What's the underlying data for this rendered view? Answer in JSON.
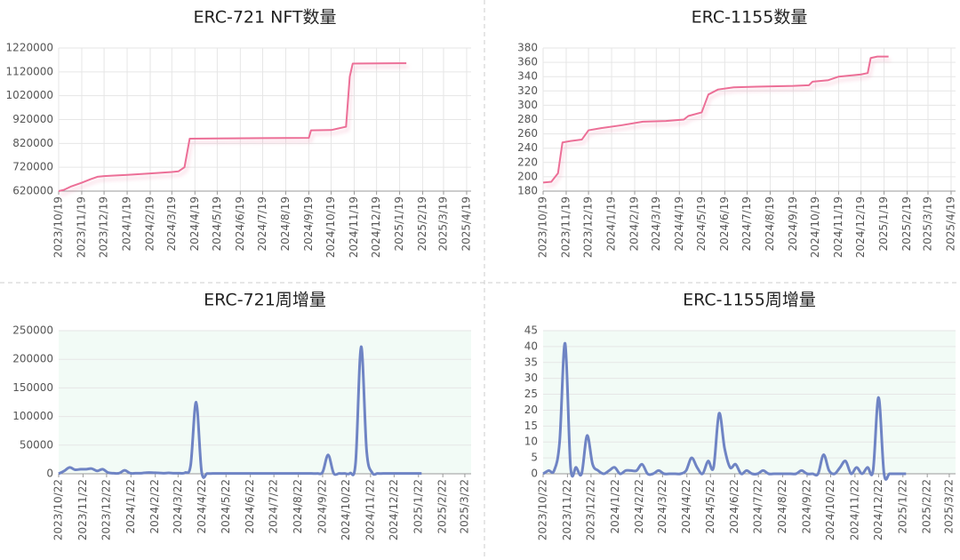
{
  "chart_data": [
    {
      "type": "line",
      "title": "ERC-721 NFT数量",
      "x": [
        "2023/10/19",
        "2023/10/26",
        "2023/11/5",
        "2023/11/19",
        "2023/12/1",
        "2023/12/10",
        "2023/12/19",
        "2024/1/19",
        "2024/2/19",
        "2024/3/19",
        "2024/3/28",
        "2024/4/5",
        "2024/4/12",
        "2024/5/19",
        "2024/7/19",
        "2024/9/19",
        "2024/9/22",
        "2024/10/19",
        "2024/11/8",
        "2024/11/13",
        "2024/11/17",
        "2025/1/19",
        "2025/1/28"
      ],
      "series": [
        {
          "name": "ERC-721",
          "color": "#ec6f97",
          "values": [
            620000,
            625000,
            640000,
            655000,
            670000,
            680000,
            683000,
            688000,
            694000,
            700000,
            703000,
            720000,
            840000,
            841000,
            842000,
            843000,
            875000,
            876000,
            890000,
            1100000,
            1155000,
            1156000,
            1156000
          ]
        }
      ],
      "xlim": [
        "2023/10/19",
        "2025/4/25"
      ],
      "xticks": [
        "2023/10/19",
        "2023/11/19",
        "2023/12/19",
        "2024/1/19",
        "2024/2/19",
        "2024/3/19",
        "2024/4/19",
        "2024/5/19",
        "2024/6/19",
        "2024/7/19",
        "2024/8/19",
        "2024/9/19",
        "2024/10/19",
        "2024/11/19",
        "2024/12/19",
        "2025/1/19",
        "2025/2/19",
        "2025/3/19",
        "2025/4/19"
      ],
      "ylim": [
        620000,
        1220000
      ],
      "yticks": [
        620000,
        720000,
        820000,
        920000,
        1020000,
        1120000,
        1220000
      ],
      "grid": "both"
    },
    {
      "type": "line",
      "title": "ERC-1155数量",
      "x": [
        "2023/10/19",
        "2023/10/30",
        "2023/11/8",
        "2023/11/14",
        "2023/11/25",
        "2023/12/10",
        "2023/12/19",
        "2024/1/5",
        "2024/2/1",
        "2024/3/1",
        "2024/4/1",
        "2024/4/25",
        "2024/5/1",
        "2024/5/19",
        "2024/5/28",
        "2024/6/10",
        "2024/7/1",
        "2024/8/1",
        "2024/9/19",
        "2024/10/10",
        "2024/10/15",
        "2024/11/5",
        "2024/11/19",
        "2024/12/19",
        "2024/12/28",
        "2025/1/1",
        "2025/1/10",
        "2025/1/25"
      ],
      "series": [
        {
          "name": "ERC-1155",
          "color": "#ec6f97",
          "values": [
            192,
            193,
            205,
            248,
            250,
            252,
            265,
            268,
            272,
            277,
            278,
            280,
            285,
            290,
            315,
            322,
            325,
            326,
            327,
            328,
            333,
            335,
            340,
            343,
            345,
            366,
            368,
            368
          ]
        }
      ],
      "xlim": [
        "2023/10/19",
        "2025/4/25"
      ],
      "xticks": [
        "2023/10/19",
        "2023/11/19",
        "2023/12/19",
        "2024/1/19",
        "2024/2/19",
        "2024/3/19",
        "2024/4/19",
        "2024/5/19",
        "2024/6/19",
        "2024/7/19",
        "2024/8/19",
        "2024/9/19",
        "2024/10/19",
        "2024/11/19",
        "2024/12/19",
        "2025/1/19",
        "2025/2/19",
        "2025/3/19",
        "2025/4/19"
      ],
      "ylim": [
        180,
        380
      ],
      "yticks": [
        180,
        200,
        220,
        240,
        260,
        280,
        300,
        320,
        340,
        360,
        380
      ],
      "grid": "both"
    },
    {
      "type": "line",
      "title": "ERC-721周增量",
      "smooth": true,
      "plot_background": "#f2fbf6",
      "x": [
        "2023/10/22",
        "2023/10/29",
        "2023/11/5",
        "2023/11/12",
        "2023/11/19",
        "2023/11/26",
        "2023/12/3",
        "2023/12/10",
        "2023/12/17",
        "2023/12/24",
        "2023/12/31",
        "2024/1/7",
        "2024/1/14",
        "2024/1/21",
        "2024/1/28",
        "2024/2/4",
        "2024/2/11",
        "2024/2/18",
        "2024/2/25",
        "2024/3/3",
        "2024/3/10",
        "2024/3/17",
        "2024/3/24",
        "2024/3/31",
        "2024/4/7",
        "2024/4/14",
        "2024/4/21",
        "2024/4/28",
        "2024/5/5",
        "2024/5/12",
        "2024/5/19",
        "2024/5/26",
        "2024/6/2",
        "2024/6/9",
        "2024/6/16",
        "2024/6/23",
        "2024/6/30",
        "2024/7/7",
        "2024/7/14",
        "2024/7/21",
        "2024/7/28",
        "2024/8/4",
        "2024/8/11",
        "2024/8/18",
        "2024/8/25",
        "2024/9/1",
        "2024/9/8",
        "2024/9/15",
        "2024/9/22",
        "2024/9/29",
        "2024/10/6",
        "2024/10/13",
        "2024/10/20",
        "2024/10/27",
        "2024/11/3",
        "2024/11/10",
        "2024/11/17",
        "2024/11/24",
        "2024/12/1",
        "2024/12/8",
        "2024/12/15",
        "2024/12/22",
        "2024/12/29",
        "2025/1/5",
        "2025/1/12",
        "2025/1/19",
        "2025/1/26"
      ],
      "series": [
        {
          "name": "ERC-721周增量",
          "color": "#6f84c4",
          "values": [
            0,
            5000,
            11000,
            7000,
            8000,
            8000,
            9000,
            5000,
            8000,
            2000,
            1000,
            1000,
            6000,
            1000,
            1000,
            1000,
            2000,
            2000,
            1500,
            1000,
            1500,
            1000,
            1000,
            2000,
            15000,
            125000,
            3000,
            500,
            500,
            500,
            500,
            500,
            500,
            500,
            500,
            500,
            500,
            500,
            500,
            500,
            500,
            500,
            500,
            500,
            500,
            500,
            500,
            500,
            3000,
            33000,
            1000,
            500,
            500,
            1000,
            20000,
            222000,
            40000,
            2000,
            500,
            500,
            500,
            500,
            500,
            500,
            500,
            500,
            500
          ]
        }
      ],
      "xlim": [
        "2023/10/22",
        "2025/3/30"
      ],
      "xticks": [
        "2023/10/22",
        "2023/11/22",
        "2023/12/22",
        "2024/1/22",
        "2024/2/22",
        "2024/3/22",
        "2024/4/22",
        "2024/5/22",
        "2024/6/22",
        "2024/7/22",
        "2024/8/22",
        "2024/9/22",
        "2024/10/22",
        "2024/11/22",
        "2024/12/22",
        "2025/1/22",
        "2025/2/22",
        "2025/3/22"
      ],
      "ylim": [
        0,
        250000
      ],
      "yticks": [
        0,
        50000,
        100000,
        150000,
        200000,
        250000
      ],
      "grid": "y"
    },
    {
      "type": "line",
      "title": "ERC-1155周增量",
      "smooth": true,
      "plot_background": "#f2fbf6",
      "x": [
        "2023/10/22",
        "2023/10/29",
        "2023/11/5",
        "2023/11/12",
        "2023/11/19",
        "2023/11/26",
        "2023/12/3",
        "2023/12/10",
        "2023/12/17",
        "2023/12/24",
        "2023/12/31",
        "2024/1/7",
        "2024/1/14",
        "2024/1/21",
        "2024/1/28",
        "2024/2/4",
        "2024/2/11",
        "2024/2/18",
        "2024/2/25",
        "2024/3/3",
        "2024/3/10",
        "2024/3/17",
        "2024/3/24",
        "2024/3/31",
        "2024/4/7",
        "2024/4/14",
        "2024/4/21",
        "2024/4/28",
        "2024/5/5",
        "2024/5/12",
        "2024/5/19",
        "2024/5/26",
        "2024/6/2",
        "2024/6/9",
        "2024/6/16",
        "2024/6/23",
        "2024/6/30",
        "2024/7/7",
        "2024/7/14",
        "2024/7/21",
        "2024/7/28",
        "2024/8/4",
        "2024/8/11",
        "2024/8/18",
        "2024/8/25",
        "2024/9/1",
        "2024/9/8",
        "2024/9/15",
        "2024/9/22",
        "2024/9/29",
        "2024/10/6",
        "2024/10/13",
        "2024/10/20",
        "2024/10/27",
        "2024/11/3",
        "2024/11/10",
        "2024/11/17",
        "2024/11/24",
        "2024/12/1",
        "2024/12/8",
        "2024/12/15",
        "2024/12/22",
        "2024/12/29",
        "2025/1/5",
        "2025/1/12",
        "2025/1/19",
        "2025/1/26"
      ],
      "series": [
        {
          "name": "ERC-1155周增量",
          "color": "#6f84c4",
          "values": [
            0,
            1,
            1,
            10,
            41,
            2,
            2,
            0,
            12,
            3,
            1,
            0,
            1,
            2,
            0,
            1,
            1,
            1,
            3,
            0,
            0,
            1,
            0,
            0,
            0,
            0,
            1,
            5,
            2,
            0,
            4,
            2,
            19,
            8,
            2,
            3,
            0,
            1,
            0,
            0,
            1,
            0,
            0,
            0,
            0,
            0,
            0,
            1,
            0,
            0,
            0,
            6,
            1,
            0,
            2,
            4,
            0,
            2,
            0,
            2,
            1,
            24,
            0,
            0,
            0,
            0,
            0
          ]
        }
      ],
      "xlim": [
        "2023/10/22",
        "2025/3/30"
      ],
      "xticks": [
        "2023/10/22",
        "2023/11/22",
        "2023/12/22",
        "2024/1/22",
        "2024/2/22",
        "2024/3/22",
        "2024/4/22",
        "2024/5/22",
        "2024/6/22",
        "2024/7/22",
        "2024/8/22",
        "2024/9/22",
        "2024/10/22",
        "2024/11/22",
        "2024/12/22",
        "2025/1/22",
        "2025/2/22",
        "2025/3/22"
      ],
      "ylim": [
        0,
        45
      ],
      "yticks": [
        0,
        5,
        10,
        15,
        20,
        25,
        30,
        35,
        40,
        45
      ],
      "grid": "y"
    }
  ]
}
